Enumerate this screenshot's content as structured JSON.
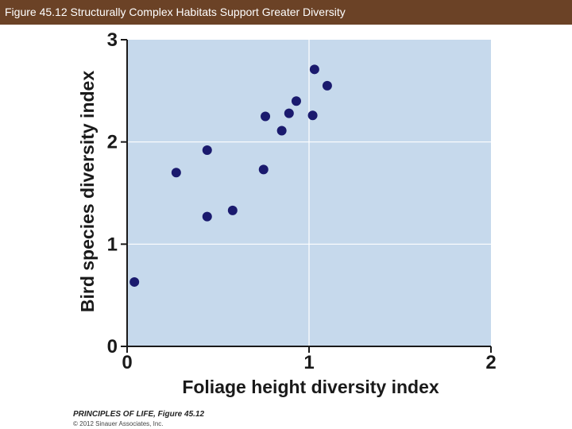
{
  "header": {
    "title": "Figure 45.12  Structurally Complex Habitats Support Greater Diversity"
  },
  "credits": {
    "book": "PRINCIPLES OF LIFE, Figure 45.12",
    "copyright": "© 2012 Sinauer Associates, Inc."
  },
  "colors": {
    "header_bg": "#6b4226",
    "plot_bg": "#c6d9ec",
    "grid": "#ffffff",
    "point": "#1a1a6e",
    "axis": "#1a1a1a"
  },
  "chart_data": {
    "type": "scatter",
    "title": "",
    "xlabel": "Foliage height diversity index",
    "ylabel": "Bird species diversity index",
    "xlim": [
      0,
      2
    ],
    "ylim": [
      0,
      3
    ],
    "xticks": [
      "0",
      "1",
      "2"
    ],
    "yticks": [
      "0",
      "1",
      "2",
      "3"
    ],
    "grid": true,
    "points": [
      {
        "x": 0.04,
        "y": 0.63
      },
      {
        "x": 0.27,
        "y": 1.7
      },
      {
        "x": 0.44,
        "y": 1.92
      },
      {
        "x": 0.44,
        "y": 1.27
      },
      {
        "x": 0.58,
        "y": 1.33
      },
      {
        "x": 0.75,
        "y": 1.73
      },
      {
        "x": 0.76,
        "y": 2.25
      },
      {
        "x": 0.85,
        "y": 2.11
      },
      {
        "x": 0.89,
        "y": 2.28
      },
      {
        "x": 0.93,
        "y": 2.4
      },
      {
        "x": 1.02,
        "y": 2.26
      },
      {
        "x": 1.03,
        "y": 2.71
      },
      {
        "x": 1.1,
        "y": 2.55
      }
    ]
  }
}
